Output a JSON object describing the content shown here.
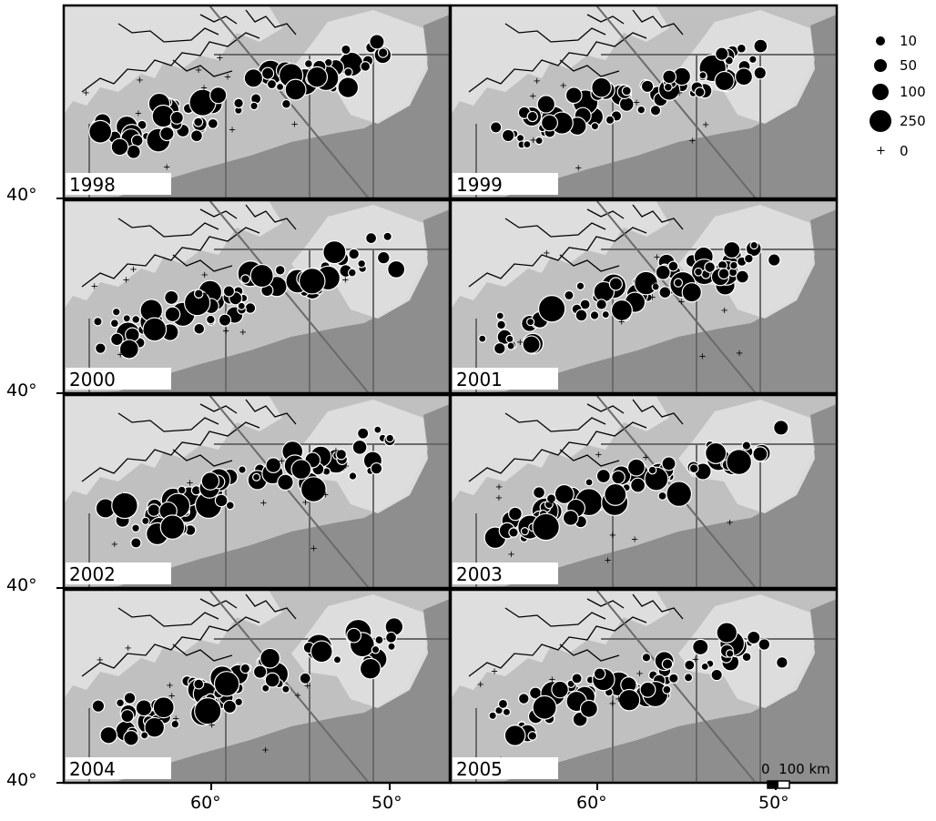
{
  "panels": [
    {
      "year": "1998"
    },
    {
      "year": "1999"
    },
    {
      "year": "2000"
    },
    {
      "year": "2001"
    },
    {
      "year": "2002"
    },
    {
      "year": "2003"
    },
    {
      "year": "2004"
    },
    {
      "year": "2005"
    }
  ],
  "y_axis_labels": [
    "40°",
    "40°",
    "40°",
    "40°"
  ],
  "x_axis_labels": [
    "60°",
    "50°",
    "60°",
    "50°"
  ],
  "legend": [
    {
      "label": "10",
      "symbol": "circle",
      "relative_size": 10
    },
    {
      "label": "50",
      "symbol": "circle",
      "relative_size": 50
    },
    {
      "label": "100",
      "symbol": "circle",
      "relative_size": 100
    },
    {
      "label": "250",
      "symbol": "circle",
      "relative_size": 250
    },
    {
      "label": "0",
      "symbol": "plus"
    }
  ],
  "scale_bar": {
    "min_label": "0",
    "max_label": "100 km"
  },
  "colors": {
    "ocean_deep": "#8e8e8e",
    "shelf": "#c0c0c0",
    "land": "#dedede",
    "symbol": "#000000",
    "symbol_outline": "#ffffff",
    "frame": "#000000"
  }
}
